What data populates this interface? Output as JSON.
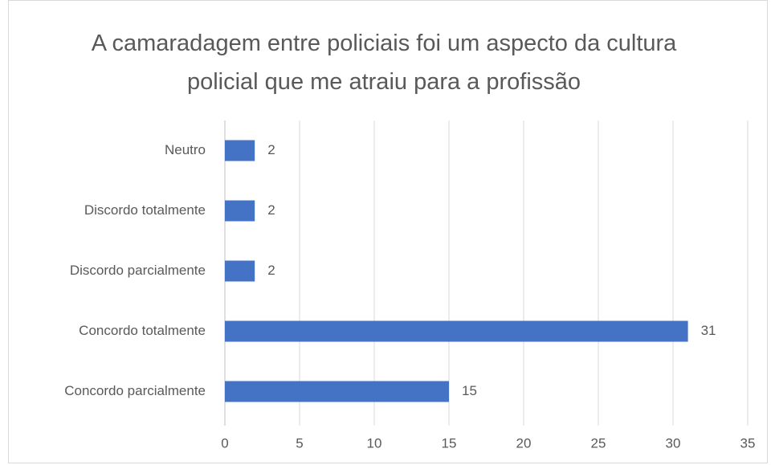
{
  "chart_data": {
    "type": "bar",
    "orientation": "horizontal",
    "title": "A camaradagem entre policiais foi um aspecto da cultura policial que me atraiu para a profissão",
    "categories": [
      "Neutro",
      "Discordo totalmente",
      "Discordo parcialmente",
      "Concordo totalmente",
      "Concordo parcialmente"
    ],
    "values": [
      2,
      2,
      2,
      31,
      15
    ],
    "color": "#4472c4",
    "xlim": [
      0,
      35
    ],
    "xticks": [
      0,
      5,
      10,
      15,
      20,
      25,
      30,
      35
    ],
    "grid": true
  }
}
